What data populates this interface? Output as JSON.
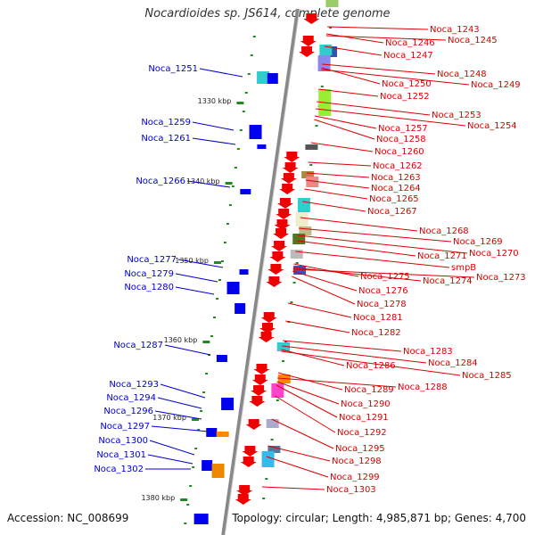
{
  "title": "Nocardioides sp. JS614, complete genome",
  "footer": {
    "accession": "Accession: NC_008699",
    "info": "Topology: circular; Length: 4,985,871 bp; Genes: 4,700"
  },
  "colors": {
    "left_label": "#0000cc",
    "right_label": "#dd0000",
    "scale": "#228822",
    "axis": "#888888"
  },
  "scale_labels": [
    "1330 kbp",
    "1340 kbp",
    "1350 kbp",
    "1360 kbp",
    "1370 kbp",
    "1380 kbp"
  ],
  "left_genes": [
    "Noca_1251",
    "Noca_1259",
    "Noca_1261",
    "Noca_1266",
    "Noca_1277",
    "Noca_1279",
    "Noca_1280",
    "Noca_1287",
    "Noca_1293",
    "Noca_1294",
    "Noca_1296",
    "Noca_1297",
    "Noca_1300",
    "Noca_1301",
    "Noca_1302"
  ],
  "right_genes": [
    "Noca_1243",
    "Noca_1246",
    "Noca_1245",
    "Noca_1247",
    "Noca_1248",
    "Noca_1250",
    "Noca_1249",
    "Noca_1252",
    "Noca_1253",
    "Noca_1257",
    "Noca_1254",
    "Noca_1258",
    "Noca_1260",
    "Noca_1262",
    "Noca_1263",
    "Noca_1264",
    "Noca_1265",
    "Noca_1267",
    "Noca_1268",
    "Noca_1269",
    "Noca_1270",
    "Noca_1271",
    "smpB",
    "Noca_1275",
    "Noca_1274",
    "Noca_1273",
    "Noca_1276",
    "Noca_1278",
    "Noca_1281",
    "Noca_1282",
    "Noca_1283",
    "Noca_1284",
    "Noca_1286",
    "Noca_1285",
    "Noca_1289",
    "Noca_1288",
    "Noca_1290",
    "Noca_1291",
    "Noca_1292",
    "Noca_1295",
    "Noca_1298",
    "Noca_1299",
    "Noca_1303"
  ]
}
